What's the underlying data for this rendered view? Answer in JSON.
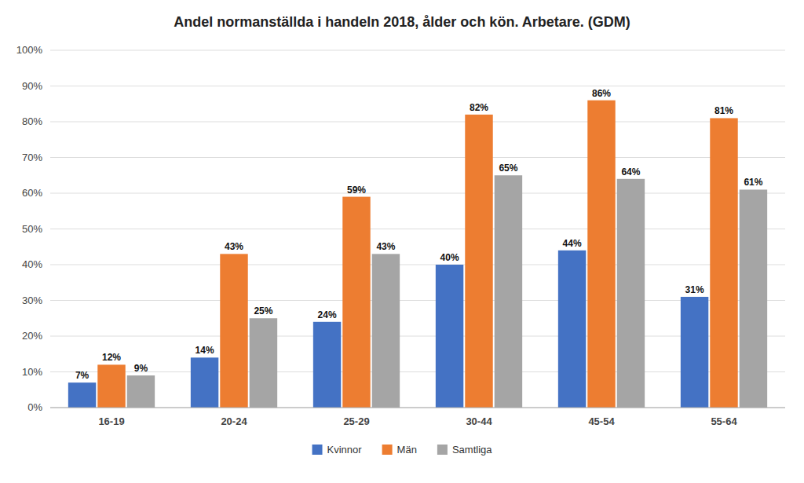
{
  "chart_data": {
    "type": "bar",
    "title": "Andel normanställda i handeln 2018, ålder och kön. Arbetare. (GDM)",
    "categories": [
      "16-19",
      "20-24",
      "25-29",
      "30-44",
      "45-54",
      "55-64"
    ],
    "series": [
      {
        "name": "Kvinnor",
        "color": "#4472C4",
        "values": [
          7,
          14,
          24,
          40,
          44,
          31
        ],
        "value_labels": [
          "7%",
          "14%",
          "24%",
          "40%",
          "44%",
          "31%"
        ]
      },
      {
        "name": "Män",
        "color": "#ED7D31",
        "values": [
          12,
          43,
          59,
          82,
          86,
          81
        ],
        "value_labels": [
          "12%",
          "43%",
          "59%",
          "82%",
          "86%",
          "81%"
        ]
      },
      {
        "name": "Samtliga",
        "color": "#A5A5A5",
        "values": [
          9,
          25,
          43,
          65,
          64,
          61
        ],
        "value_labels": [
          "9%",
          "25%",
          "43%",
          "65%",
          "64%",
          "61%"
        ]
      }
    ],
    "ylim": [
      0,
      100
    ],
    "yticks": [
      {
        "value": 0,
        "label": "0%"
      },
      {
        "value": 10,
        "label": "10%"
      },
      {
        "value": 20,
        "label": "20%"
      },
      {
        "value": 30,
        "label": "30%"
      },
      {
        "value": 40,
        "label": "40%"
      },
      {
        "value": 50,
        "label": "50%"
      },
      {
        "value": 60,
        "label": "60%"
      },
      {
        "value": 70,
        "label": "70%"
      },
      {
        "value": 80,
        "label": "80%"
      },
      {
        "value": 90,
        "label": "90%"
      },
      {
        "value": 100,
        "label": "100%"
      }
    ],
    "grid": true,
    "legend": "bottom",
    "data_labels": true
  }
}
